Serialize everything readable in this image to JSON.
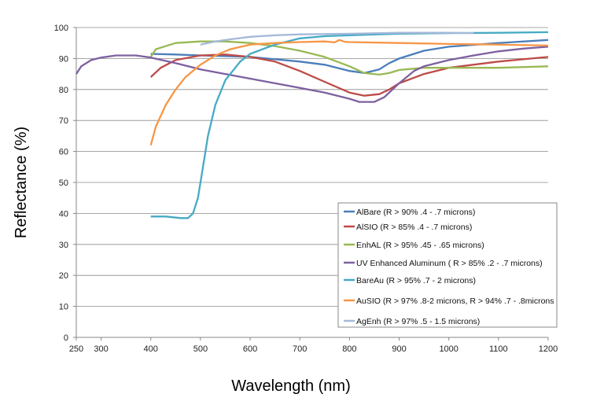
{
  "chart_data": {
    "type": "line",
    "title": "",
    "xlabel": "Wavelength (nm)",
    "ylabel": "Reflectance (%)",
    "xlim": [
      250,
      1200
    ],
    "ylim": [
      0,
      100
    ],
    "x_ticks": [
      250,
      300,
      400,
      500,
      600,
      700,
      800,
      900,
      1000,
      1100,
      1200
    ],
    "y_ticks": [
      0,
      10,
      20,
      30,
      40,
      50,
      60,
      70,
      80,
      90,
      100
    ],
    "grid": "horizontal",
    "legend_position": "lower-right",
    "series": [
      {
        "name": "AlBare (R > 90% .4 - .7 microns)",
        "color": "#4a7ebb",
        "x": [
          400,
          450,
          500,
          600,
          700,
          750,
          800,
          830,
          860,
          880,
          900,
          950,
          1000,
          1100,
          1200
        ],
        "y": [
          91.5,
          91.3,
          91,
          90.5,
          89,
          88,
          86,
          85.3,
          86.5,
          88.5,
          90,
          92.5,
          93.8,
          95,
          96
        ]
      },
      {
        "name": "AlSIO  (R > 85% .4 - .7 microns)",
        "color": "#be4b48",
        "x": [
          400,
          420,
          450,
          500,
          550,
          600,
          650,
          700,
          750,
          800,
          830,
          860,
          880,
          900,
          950,
          1000,
          1100,
          1200
        ],
        "y": [
          84,
          87,
          89.5,
          91,
          91.3,
          90.5,
          89,
          86,
          82.5,
          79,
          78,
          78.5,
          80,
          82,
          85,
          87,
          89,
          90.5
        ]
      },
      {
        "name": "EnhAL (R > 95% .45 - .65 microns)",
        "color": "#98b954",
        "x": [
          400,
          410,
          450,
          500,
          550,
          600,
          650,
          700,
          750,
          800,
          830,
          860,
          880,
          900,
          950,
          1000,
          1100,
          1200
        ],
        "y": [
          90.5,
          93,
          95,
          95.5,
          95.5,
          95,
          94,
          92.5,
          90.5,
          87.5,
          85.3,
          84.8,
          85.3,
          86.3,
          87,
          87,
          87,
          87.5
        ]
      },
      {
        "name": "UV Enhanced Aluminum  ( R > 85% .2 - .7 microns)",
        "color": "#7d60a0",
        "x": [
          250,
          260,
          280,
          300,
          330,
          370,
          400,
          450,
          500,
          550,
          600,
          650,
          700,
          750,
          800,
          820,
          850,
          870,
          900,
          930,
          950,
          1000,
          1050,
          1100,
          1150,
          1200
        ],
        "y": [
          85,
          87.5,
          89.5,
          90.3,
          91,
          91,
          90.3,
          88.5,
          86.5,
          85,
          83.5,
          82,
          80.5,
          79,
          77,
          76,
          76,
          77.5,
          82,
          86,
          87.5,
          89.5,
          91,
          92.3,
          93.2,
          93.8
        ]
      },
      {
        "name": "BareAu (R > 95% .7 - 2 microns)",
        "color": "#46aac5",
        "x": [
          400,
          430,
          460,
          475,
          485,
          495,
          505,
          515,
          530,
          550,
          580,
          600,
          650,
          700,
          750,
          800,
          900,
          1000,
          1100,
          1200
        ],
        "y": [
          39,
          39,
          38.5,
          38.5,
          40,
          45,
          55,
          65,
          75,
          83,
          89,
          91.5,
          94.5,
          96.5,
          97.2,
          97.5,
          98,
          98.2,
          98.3,
          98.5
        ]
      },
      {
        "name": "AuSIO (R > 97% .8-2 microns, R > 94% .7 - .8microns",
        "color": "#f79646",
        "x": [
          400,
          410,
          430,
          450,
          470,
          500,
          530,
          560,
          600,
          650,
          700,
          750,
          770,
          780,
          790,
          800,
          900,
          1000,
          1100,
          1200
        ],
        "y": [
          62,
          68,
          75,
          80,
          84,
          88,
          91,
          93,
          94.5,
          95,
          95.3,
          95.5,
          95.2,
          96,
          95.4,
          95.3,
          95,
          94.7,
          94.5,
          94.2
        ]
      },
      {
        "name": "AgEnh (R > 97% .5 - 1.5 microns)",
        "color": "#a5b9d9",
        "x": [
          500,
          530,
          560,
          600,
          650,
          700,
          800,
          900,
          1000,
          1050
        ],
        "y": [
          94.5,
          95.5,
          96.2,
          97,
          97.5,
          97.8,
          98,
          98.3,
          98.3,
          98.2
        ]
      }
    ]
  }
}
